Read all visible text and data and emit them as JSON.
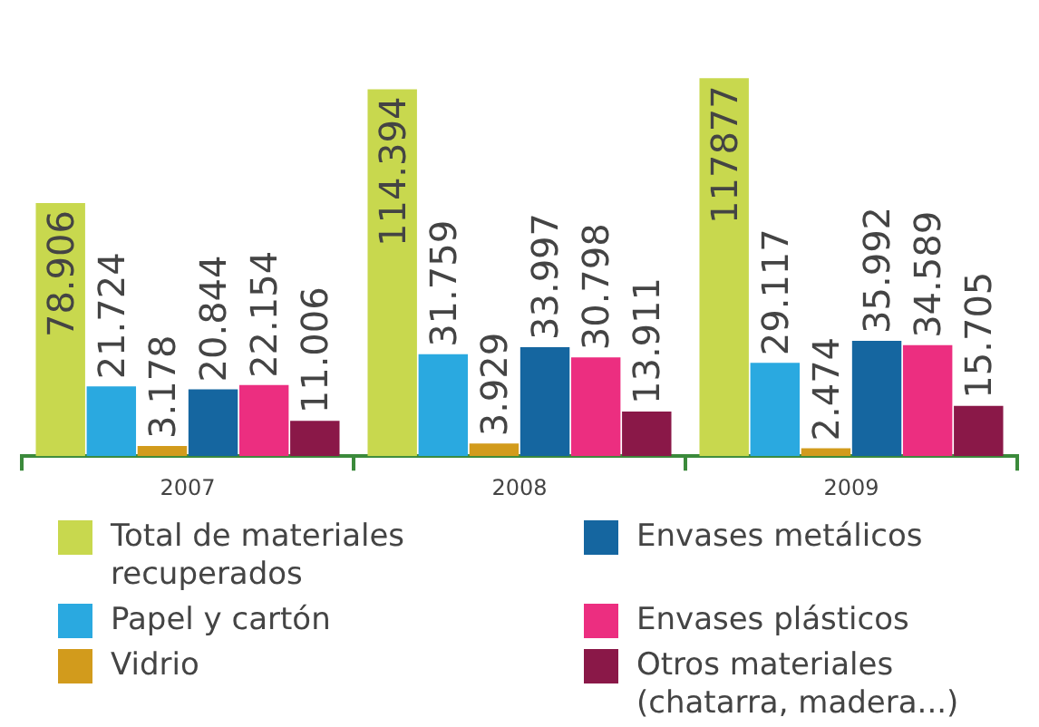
{
  "chart_data": {
    "type": "bar",
    "categories": [
      "2007",
      "2008",
      "2009"
    ],
    "series": [
      {
        "name": "Total de materiales recuperados",
        "color": "#c8d84e",
        "values": [
          78906,
          114394,
          117877
        ],
        "value_labels": [
          "78.906",
          "114.394",
          "117877"
        ]
      },
      {
        "name": "Papel y cartón",
        "color": "#2aa9e0",
        "values": [
          21724,
          31759,
          29117
        ],
        "value_labels": [
          "21.724",
          "31.759",
          "29.117"
        ]
      },
      {
        "name": "Vidrio",
        "color": "#d29b1c",
        "values": [
          3178,
          3929,
          2474
        ],
        "value_labels": [
          "3.178",
          "3.929",
          "2.474"
        ]
      },
      {
        "name": "Envases metálicos",
        "color": "#1566a0",
        "values": [
          20844,
          33997,
          35992
        ],
        "value_labels": [
          "20.844",
          "33.997",
          "35.992"
        ]
      },
      {
        "name": "Envases plásticos",
        "color": "#ec2e80",
        "values": [
          22154,
          30798,
          34589
        ],
        "value_labels": [
          "22.154",
          "30.798",
          "34.589"
        ]
      },
      {
        "name": "Otros materiales (chatarra, madera...)",
        "color": "#8a1848",
        "values": [
          11006,
          13911,
          15705
        ],
        "value_labels": [
          "11.006",
          "13.911",
          "15.705"
        ]
      }
    ],
    "legend": "bottom",
    "grid": false
  }
}
